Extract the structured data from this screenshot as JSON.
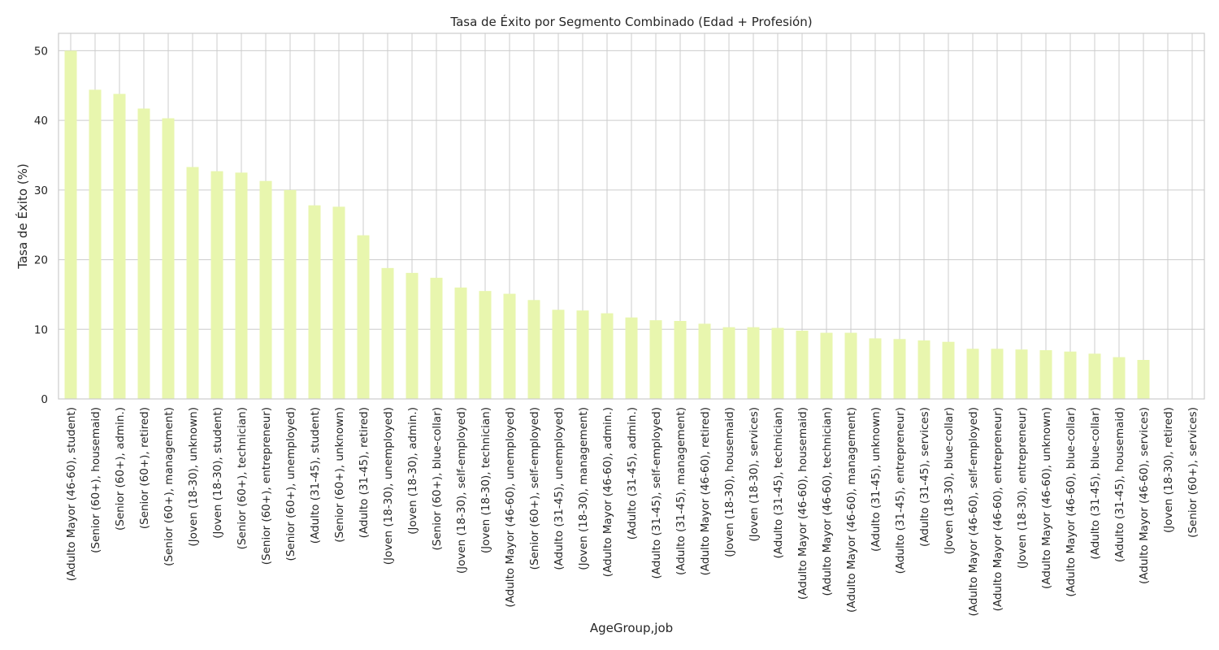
{
  "chart_data": {
    "type": "bar",
    "title": "Tasa de Éxito por Segmento Combinado (Edad + Profesión)",
    "xlabel": "AgeGroup,job",
    "ylabel": "Tasa de Éxito (%)",
    "ylim": [
      0,
      52.5
    ],
    "yticks": [
      0,
      10,
      20,
      30,
      40,
      50
    ],
    "grid": true,
    "bar_color": "#e8f6ae",
    "grid_color": "#cccccc",
    "categories": [
      "(Adulto Mayor (46-60), student)",
      "(Senior (60+), housemaid)",
      "(Senior (60+), admin.)",
      "(Senior (60+), retired)",
      "(Senior (60+), management)",
      "(Joven (18-30), unknown)",
      "(Joven (18-30), student)",
      "(Senior (60+), technician)",
      "(Senior (60+), entrepreneur)",
      "(Senior (60+), unemployed)",
      "(Adulto (31-45), student)",
      "(Senior (60+), unknown)",
      "(Adulto (31-45), retired)",
      "(Joven (18-30), unemployed)",
      "(Joven (18-30), admin.)",
      "(Senior (60+), blue-collar)",
      "(Joven (18-30), self-employed)",
      "(Joven (18-30), technician)",
      "(Adulto Mayor (46-60), unemployed)",
      "(Senior (60+), self-employed)",
      "(Adulto (31-45), unemployed)",
      "(Joven (18-30), management)",
      "(Adulto Mayor (46-60), admin.)",
      "(Adulto (31-45), admin.)",
      "(Adulto (31-45), self-employed)",
      "(Adulto (31-45), management)",
      "(Adulto Mayor (46-60), retired)",
      "(Joven (18-30), housemaid)",
      "(Joven (18-30), services)",
      "(Adulto (31-45), technician)",
      "(Adulto Mayor (46-60), housemaid)",
      "(Adulto Mayor (46-60), technician)",
      "(Adulto Mayor (46-60), management)",
      "(Adulto (31-45), unknown)",
      "(Adulto (31-45), entrepreneur)",
      "(Adulto (31-45), services)",
      "(Joven (18-30), blue-collar)",
      "(Adulto Mayor (46-60), self-employed)",
      "(Adulto Mayor (46-60), entrepreneur)",
      "(Joven (18-30), entrepreneur)",
      "(Adulto Mayor (46-60), unknown)",
      "(Adulto Mayor (46-60), blue-collar)",
      "(Adulto (31-45), blue-collar)",
      "(Adulto (31-45), housemaid)",
      "(Adulto Mayor (46-60), services)",
      "(Joven (18-30), retired)",
      "(Senior (60+), services)"
    ],
    "values": [
      50.0,
      44.4,
      43.8,
      41.7,
      40.3,
      33.3,
      32.7,
      32.5,
      31.3,
      30.0,
      27.8,
      27.6,
      23.5,
      18.8,
      18.1,
      17.4,
      16.0,
      15.5,
      15.1,
      14.2,
      12.8,
      12.7,
      12.3,
      11.7,
      11.3,
      11.2,
      10.8,
      10.3,
      10.3,
      10.2,
      9.8,
      9.5,
      9.5,
      8.7,
      8.6,
      8.4,
      8.2,
      7.2,
      7.2,
      7.1,
      7.0,
      6.8,
      6.5,
      6.0,
      5.6,
      0.0,
      0.0
    ]
  }
}
